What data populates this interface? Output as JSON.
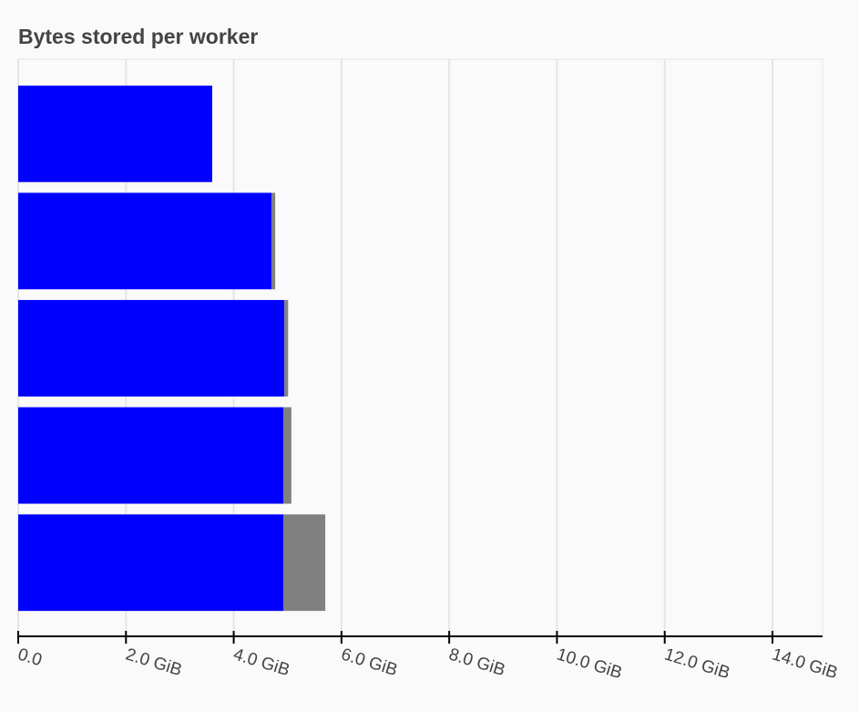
{
  "chart_data": {
    "type": "stacked-bar-horizontal",
    "title": "Bytes stored per worker",
    "categories": [
      null,
      null,
      null,
      null,
      null
    ],
    "series": [
      {
        "color": "#0000ff",
        "values": [
          3.6,
          4.7,
          4.94,
          4.92,
          4.92
        ]
      },
      {
        "color": "#808080",
        "values": [
          0,
          0.07,
          0.07,
          0.15,
          0.78
        ]
      }
    ],
    "xlim": [
      0,
      14.93
    ],
    "xticks": [
      {
        "value": 0,
        "label": "0.0"
      },
      {
        "value": 2,
        "label": "2.0 GiB"
      },
      {
        "value": 4,
        "label": "4.0 GiB"
      },
      {
        "value": 6,
        "label": "6.0 GiB"
      },
      {
        "value": 8,
        "label": "8.0 GiB"
      },
      {
        "value": 10,
        "label": "10.0 GiB"
      },
      {
        "value": 12,
        "label": "12.0 GiB"
      },
      {
        "value": 14,
        "label": "14.0 GiB"
      }
    ],
    "grid": true
  }
}
